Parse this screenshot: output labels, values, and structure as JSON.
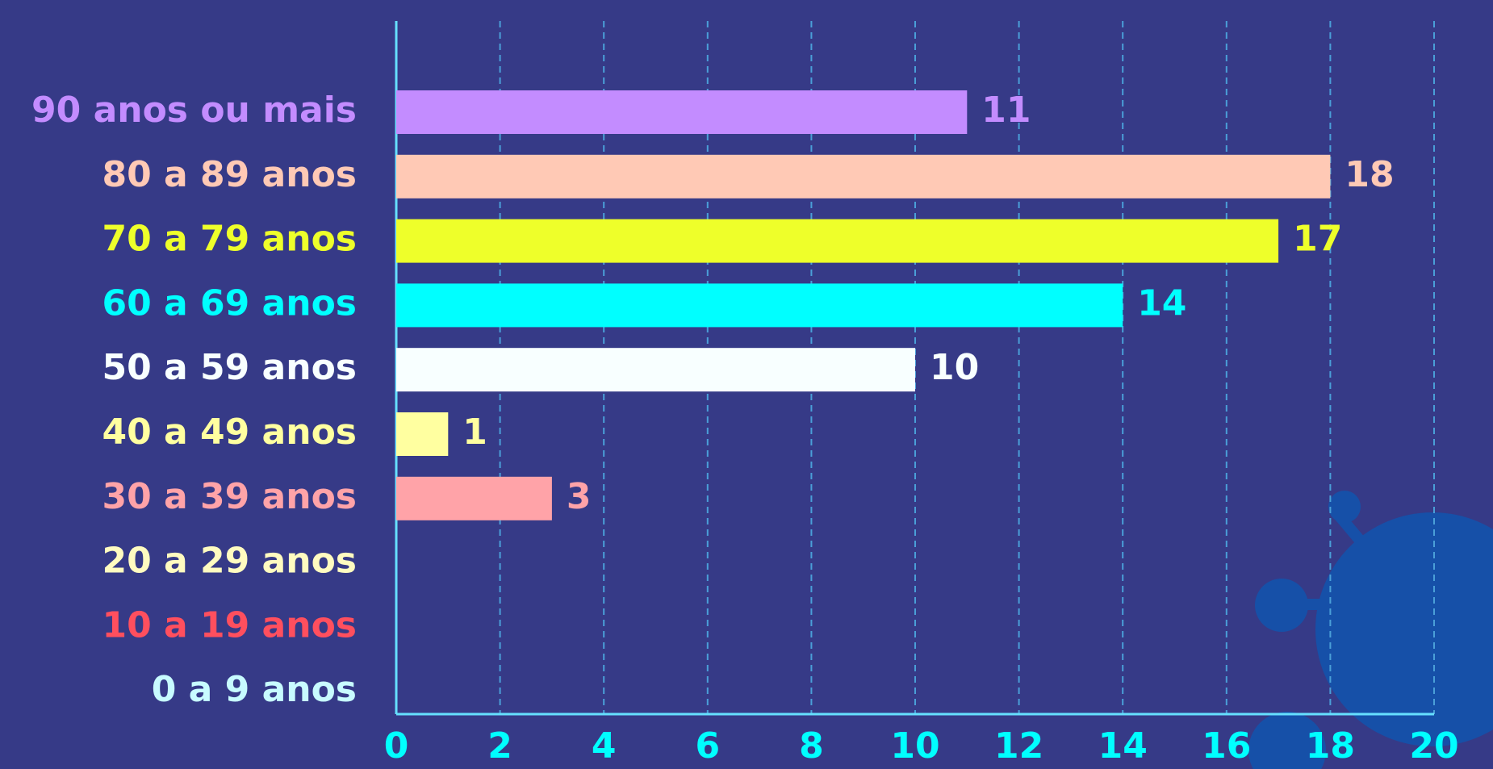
{
  "chart_data": {
    "type": "bar",
    "orientation": "horizontal",
    "categories": [
      "90 anos ou mais",
      "80 a 89 anos",
      "70 a 79 anos",
      "60 a 69 anos",
      "50 a 59 anos",
      "40 a 49 anos",
      "30 a 39 anos",
      "20 a 29 anos",
      "10 a 19 anos",
      "0 a 9 anos"
    ],
    "values": [
      11,
      18,
      17,
      14,
      10,
      1,
      3,
      null,
      null,
      null
    ],
    "colors": [
      "#c38cff",
      "#ffc9b5",
      "#eeff2a",
      "#00ffff",
      "#f8ffff",
      "#ffffa0",
      "#ffa3a8",
      "#fffbc0",
      "#ff4f5e",
      "#c8fbff"
    ],
    "xlim": [
      0,
      20
    ],
    "xticks": [
      0,
      2,
      4,
      6,
      8,
      10,
      12,
      14,
      16,
      18,
      20
    ],
    "grid": true
  }
}
